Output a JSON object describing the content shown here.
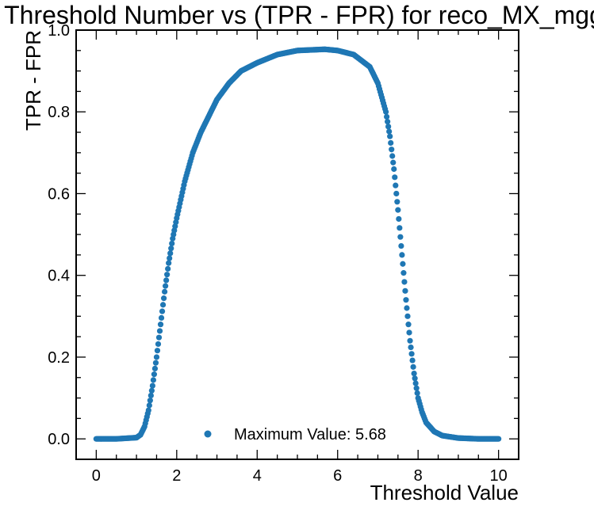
{
  "chart_data": {
    "type": "scatter",
    "title": "Threshold Number vs (TPR - FPR) for reco_MX_mgg",
    "xlabel": "Threshold Value",
    "ylabel": "TPR - FPR",
    "xlim": [
      -0.5,
      10.5
    ],
    "ylim": [
      -0.05,
      1.0
    ],
    "xticks": [
      0,
      2,
      4,
      6,
      8,
      10
    ],
    "xtick_labels": [
      "0",
      "2",
      "4",
      "6",
      "8",
      "10"
    ],
    "yticks": [
      0.0,
      0.2,
      0.4,
      0.6,
      0.8,
      1.0
    ],
    "ytick_labels": [
      "0.0",
      "0.2",
      "0.4",
      "0.6",
      "0.8",
      "1.0"
    ],
    "grid": false,
    "legend_position": "bottom-center",
    "series": [
      {
        "name": "Maximum Value: 5.68",
        "color": "#1f77b4",
        "points": [
          [
            0.0,
            0.0
          ],
          [
            0.5,
            0.0
          ],
          [
            1.0,
            0.003
          ],
          [
            1.1,
            0.01
          ],
          [
            1.2,
            0.03
          ],
          [
            1.3,
            0.07
          ],
          [
            1.4,
            0.13
          ],
          [
            1.5,
            0.2
          ],
          [
            1.6,
            0.28
          ],
          [
            1.7,
            0.36
          ],
          [
            1.8,
            0.43
          ],
          [
            1.9,
            0.49
          ],
          [
            2.0,
            0.54
          ],
          [
            2.2,
            0.63
          ],
          [
            2.4,
            0.7
          ],
          [
            2.6,
            0.75
          ],
          [
            2.8,
            0.79
          ],
          [
            3.0,
            0.83
          ],
          [
            3.3,
            0.87
          ],
          [
            3.6,
            0.9
          ],
          [
            4.0,
            0.92
          ],
          [
            4.5,
            0.94
          ],
          [
            5.0,
            0.95
          ],
          [
            5.68,
            0.953
          ],
          [
            6.0,
            0.95
          ],
          [
            6.4,
            0.94
          ],
          [
            6.8,
            0.91
          ],
          [
            7.0,
            0.87
          ],
          [
            7.2,
            0.8
          ],
          [
            7.3,
            0.74
          ],
          [
            7.4,
            0.66
          ],
          [
            7.5,
            0.56
          ],
          [
            7.6,
            0.45
          ],
          [
            7.7,
            0.34
          ],
          [
            7.8,
            0.24
          ],
          [
            7.9,
            0.16
          ],
          [
            8.0,
            0.1
          ],
          [
            8.1,
            0.065
          ],
          [
            8.2,
            0.04
          ],
          [
            8.4,
            0.018
          ],
          [
            8.6,
            0.008
          ],
          [
            9.0,
            0.002
          ],
          [
            9.5,
            0.0
          ],
          [
            10.0,
            0.0
          ]
        ]
      }
    ]
  }
}
